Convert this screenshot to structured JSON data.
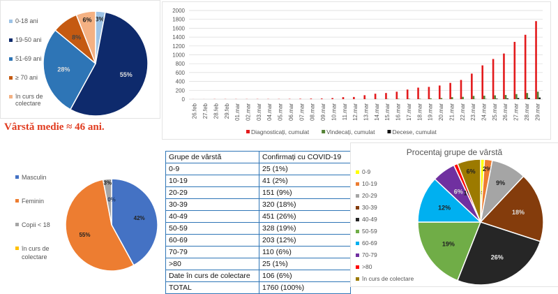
{
  "avg_age": "Vârstă medie ≈ 46 ani.",
  "chart_data": [
    {
      "type": "pie",
      "title": "",
      "labels": [
        "0-18 ani",
        "19-50 ani",
        "51-69 ani",
        "≥ 70 ani",
        "în curs de colectare"
      ],
      "values": [
        3,
        55,
        28,
        8,
        6
      ],
      "data_labels": [
        "3%",
        "55%",
        "28%",
        "8%",
        "6%"
      ],
      "colors": [
        "#9dc3e6",
        "#0e2a6c",
        "#2e75b6",
        "#c55a11",
        "#f4b183"
      ],
      "legend": "left"
    },
    {
      "type": "bar",
      "title": "",
      "categories": [
        "26.feb",
        "27.feb",
        "28.feb",
        "29.feb",
        "01.mar",
        "02.mar",
        "03.mar",
        "04.mar",
        "05.mar",
        "06.mar",
        "07.mar",
        "08.mar",
        "09.mar",
        "10.mar",
        "11.mar",
        "12.mar",
        "13.mar",
        "14.mar",
        "15.mar",
        "16.mar",
        "17.mar",
        "18.mar",
        "19.mar",
        "20.mar",
        "21.mar",
        "22.mar",
        "23.mar",
        "24.mar",
        "25.mar",
        "26.mar",
        "27.mar",
        "28.mar",
        "29.mar"
      ],
      "series": [
        {
          "name": "Diagnosticați, cumulat",
          "color": "#e31a1c",
          "values": [
            1,
            1,
            3,
            3,
            3,
            3,
            4,
            4,
            4,
            6,
            9,
            13,
            15,
            25,
            45,
            49,
            89,
            123,
            139,
            168,
            217,
            260,
            277,
            308,
            367,
            433,
            576,
            762,
            906,
            1029,
            1292,
            1452,
            1760
          ]
        },
        {
          "name": "Vindecați, cumulat",
          "color": "#548235",
          "values": [
            0,
            0,
            0,
            0,
            0,
            0,
            0,
            0,
            0,
            0,
            0,
            0,
            0,
            0,
            0,
            0,
            3,
            3,
            6,
            9,
            9,
            9,
            19,
            25,
            45,
            52,
            73,
            78,
            86,
            94,
            115,
            139,
            169
          ]
        },
        {
          "name": "Decese, cumulat",
          "color": "#111111",
          "values": [
            0,
            0,
            0,
            0,
            0,
            0,
            0,
            0,
            0,
            0,
            0,
            0,
            0,
            0,
            0,
            0,
            0,
            0,
            0,
            0,
            0,
            0,
            0,
            0,
            0,
            0,
            2,
            4,
            11,
            17,
            26,
            29,
            37
          ]
        }
      ],
      "yticks": [
        "0",
        "200",
        "400",
        "600",
        "800",
        "1000",
        "1200",
        "1400",
        "1600",
        "1800",
        "2000"
      ],
      "ylim": [
        0,
        2000
      ],
      "grid": true,
      "legend": "bottom"
    },
    {
      "type": "pie",
      "title": "",
      "labels": [
        "Masculin",
        "Feminin",
        "Copii < 18",
        "în curs de colectare"
      ],
      "values": [
        42,
        55,
        3,
        0
      ],
      "data_labels": [
        "42%",
        "55%",
        "3%",
        "0%"
      ],
      "colors": [
        "#4472c4",
        "#ed7d31",
        "#a5a5a5",
        "#ffc000"
      ],
      "legend": "left"
    },
    {
      "type": "table",
      "headers": [
        "Grupe de vârstă",
        "Confirmați cu COVID-19"
      ],
      "rows": [
        [
          "0-9",
          "25 (1%)"
        ],
        [
          "10-19",
          "41 (2%)"
        ],
        [
          "20-29",
          "151 (9%)"
        ],
        [
          "30-39",
          "320 (18%)"
        ],
        [
          "40-49",
          "451 (26%)"
        ],
        [
          "50-59",
          "328 (19%)"
        ],
        [
          "60-69",
          "203 (12%)"
        ],
        [
          "70-79",
          "110 (6%)"
        ],
        [
          ">80",
          "25 (1%)"
        ],
        [
          "Date în curs de colectare",
          "106 (6%)"
        ],
        [
          "TOTAL",
          "1760 (100%)"
        ]
      ]
    },
    {
      "type": "pie",
      "title": "Procentaj grupe de vârstă",
      "labels": [
        "0-9",
        "10-19",
        "20-29",
        "30-39",
        "40-49",
        "50-59",
        "60-69",
        "70-79",
        ">80",
        "în curs de colectare"
      ],
      "values": [
        1,
        2,
        9,
        18,
        26,
        19,
        12,
        6,
        1,
        6
      ],
      "data_labels": [
        "1%",
        "2%",
        "9%",
        "18%",
        "26%",
        "19%",
        "12%",
        "6%",
        "1%",
        "6%"
      ],
      "colors": [
        "#ffff00",
        "#ed7d31",
        "#a5a5a5",
        "#843c0c",
        "#262626",
        "#70ad47",
        "#00b0f0",
        "#7030a0",
        "#ff0000",
        "#9c7a00"
      ],
      "legend": "left"
    }
  ]
}
